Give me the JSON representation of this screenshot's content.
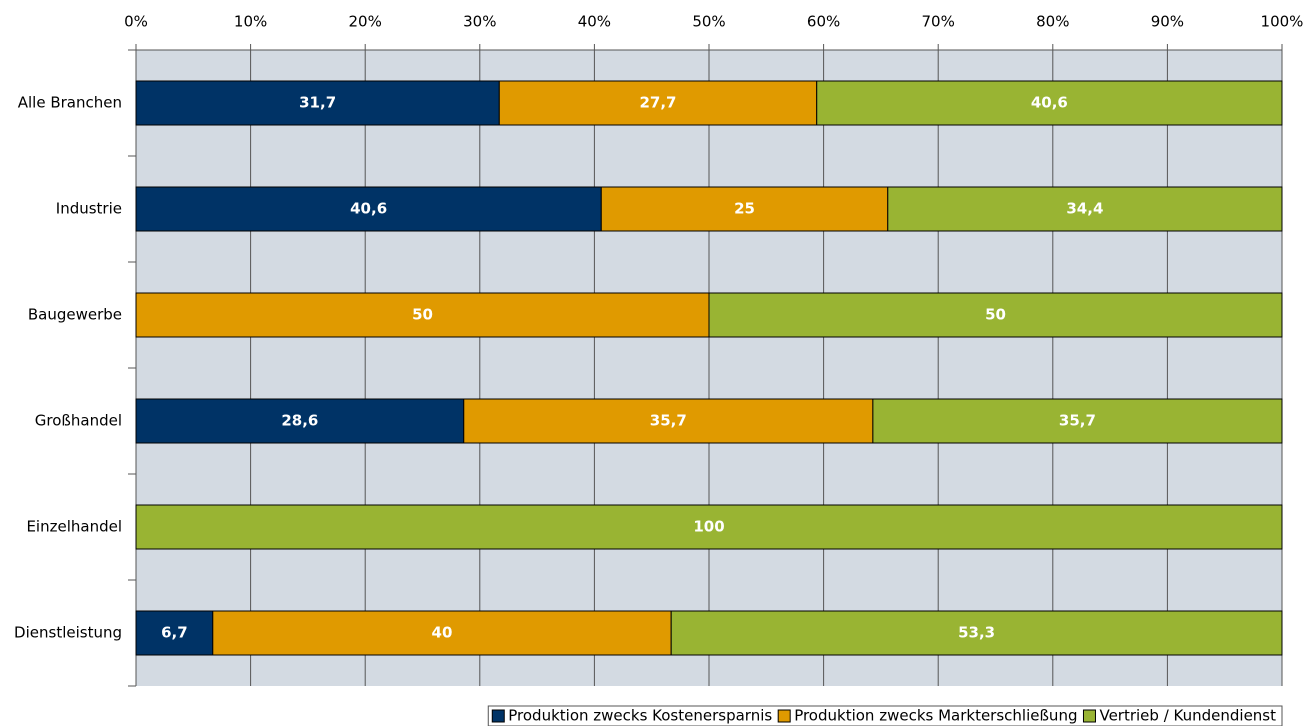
{
  "chart_data": {
    "type": "stacked_barh",
    "categories": [
      "Alle Branchen",
      "Industrie",
      "Baugewerbe",
      "Großhandel",
      "Einzelhandel",
      "Dienstleistung"
    ],
    "series": [
      {
        "name": "Produktion zwecks Kostenersparnis",
        "color": "#003366",
        "values": [
          31.7,
          40.6,
          null,
          28.6,
          null,
          6.7
        ],
        "value_labels": [
          "31,7",
          "40,6",
          null,
          "28,6",
          null,
          "6,7"
        ]
      },
      {
        "name": "Produktion zwecks Markterschließung",
        "color": "#e09a00",
        "values": [
          27.7,
          25,
          50,
          35.7,
          null,
          40
        ],
        "value_labels": [
          "27,7",
          "25",
          "50",
          "35,7",
          null,
          "40"
        ]
      },
      {
        "name": "Vertrieb / Kundendienst",
        "color": "#99b433",
        "values": [
          40.6,
          34.4,
          50,
          35.7,
          100,
          53.3
        ],
        "value_labels": [
          "40,6",
          "34,4",
          "50",
          "35,7",
          "100",
          "53,3"
        ]
      }
    ],
    "xlim": [
      0,
      100
    ],
    "xticks": [
      {
        "value": 0,
        "label": "0%"
      },
      {
        "value": 10,
        "label": "10%"
      },
      {
        "value": 20,
        "label": "20%"
      },
      {
        "value": 30,
        "label": "30%"
      },
      {
        "value": 40,
        "label": "40%"
      },
      {
        "value": 50,
        "label": "50%"
      },
      {
        "value": 60,
        "label": "60%"
      },
      {
        "value": 70,
        "label": "70%"
      },
      {
        "value": 80,
        "label": "80%"
      },
      {
        "value": 90,
        "label": "90%"
      },
      {
        "value": 100,
        "label": "100%"
      }
    ],
    "grid": true,
    "legend": "bottom"
  }
}
